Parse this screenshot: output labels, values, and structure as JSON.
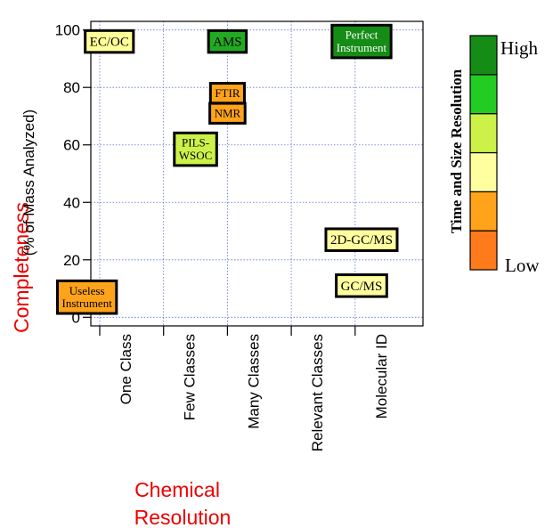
{
  "chart_data": {
    "type": "scatter",
    "y_axis": {
      "label_main": "Completeness",
      "label_sub": "(% of Mass Analyzed)",
      "ticks": [
        0,
        20,
        40,
        60,
        80,
        100
      ],
      "ylim": [
        -3,
        103
      ]
    },
    "x_axis": {
      "label_line1": "Chemical",
      "label_line2": "Resolution",
      "categories": [
        "One Class",
        "Few Classes",
        "Many Classes",
        "Relevant Classes",
        "Molecular ID"
      ]
    },
    "grid": true,
    "instruments": [
      {
        "id": "ec-oc",
        "lines": [
          "EC/OC"
        ],
        "x": 0.15,
        "y": 96,
        "color": "#ffff99",
        "fs": 15
      },
      {
        "id": "ams",
        "lines": [
          "AMS"
        ],
        "x": 2.0,
        "y": 96,
        "color": "#22aa22",
        "fs": 15
      },
      {
        "id": "perfect-instrument",
        "lines": [
          "Perfect",
          "Instrument"
        ],
        "x": 4.1,
        "y": 96,
        "color": "#158c15",
        "fs": 13
      },
      {
        "id": "ftir",
        "lines": [
          "FTIR"
        ],
        "x": 2.0,
        "y": 78,
        "color": "#ffa31a",
        "fs": 13
      },
      {
        "id": "nmr",
        "lines": [
          "NMR"
        ],
        "x": 2.0,
        "y": 71,
        "color": "#ffa31a",
        "fs": 13
      },
      {
        "id": "pils-wsoc",
        "lines": [
          "PILS-",
          "WSOC"
        ],
        "x": 1.5,
        "y": 58.5,
        "color": "#ccf24a",
        "fs": 13
      },
      {
        "id": "2d-gc-ms",
        "lines": [
          "2D-GC/MS"
        ],
        "x": 4.1,
        "y": 27,
        "color": "#ffffa0",
        "fs": 15
      },
      {
        "id": "gc-ms",
        "lines": [
          "GC/MS"
        ],
        "x": 4.1,
        "y": 11,
        "color": "#ffffa0",
        "fs": 15
      },
      {
        "id": "useless-instrument",
        "lines": [
          "Useless",
          "Instrument"
        ],
        "x": -0.2,
        "y": 7,
        "color": "#ffa31a",
        "fs": 13
      }
    ],
    "colorbar": {
      "title": "Time and Size Resolution",
      "high_label": "High",
      "low_label": "Low",
      "colors": [
        "#ff7a1a",
        "#ffa31a",
        "#ffffa0",
        "#ccf24a",
        "#22cc22",
        "#158c15"
      ]
    }
  }
}
